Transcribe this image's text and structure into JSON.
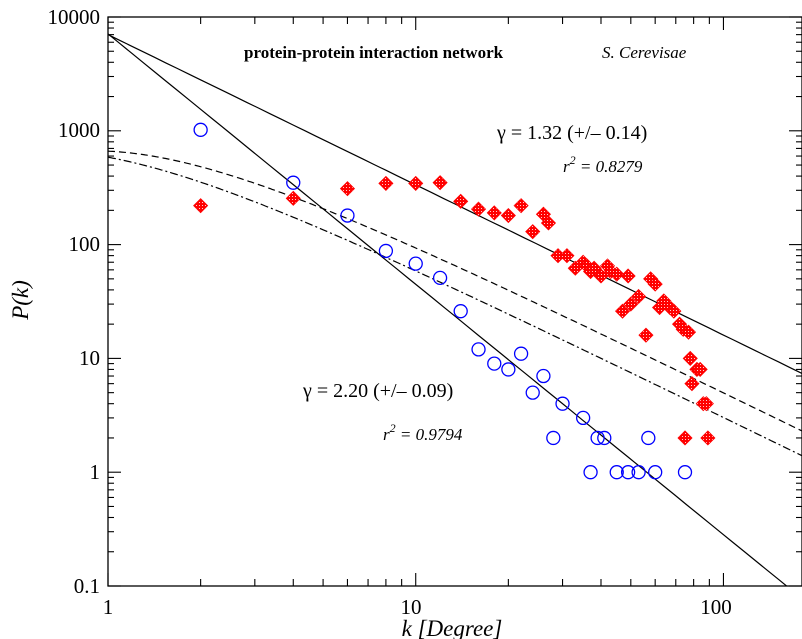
{
  "chart_data": {
    "type": "scatter",
    "title": "protein-protein interaction network",
    "subtitle": "S. Cerevisae",
    "xlabel": "k [Degree]",
    "ylabel": "P(k)",
    "xscale": "log",
    "yscale": "log",
    "xlim": [
      1,
      180
    ],
    "ylim": [
      0.1,
      10000
    ],
    "grid": false,
    "x_ticks": [
      1,
      10,
      100
    ],
    "x_tick_labels": [
      "1",
      "10",
      "100"
    ],
    "y_ticks": [
      0.1,
      1,
      10,
      100,
      1000,
      10000
    ],
    "y_tick_labels": [
      "0.1",
      "1",
      "10",
      "100",
      "1000",
      "10000"
    ],
    "series": [
      {
        "marker": "red-diamond",
        "color": "#ff0000",
        "points": [
          [
            2,
            220
          ],
          [
            4,
            255
          ],
          [
            6,
            310
          ],
          [
            8,
            345
          ],
          [
            10,
            345
          ],
          [
            12,
            350
          ],
          [
            14,
            240
          ],
          [
            16,
            205
          ],
          [
            18,
            190
          ],
          [
            20,
            180
          ],
          [
            22,
            220
          ],
          [
            24,
            130
          ],
          [
            26,
            185
          ],
          [
            27,
            155
          ],
          [
            29,
            80
          ],
          [
            31,
            80
          ],
          [
            33,
            62
          ],
          [
            35,
            70
          ],
          [
            36,
            65
          ],
          [
            37,
            58
          ],
          [
            38,
            62
          ],
          [
            40,
            53
          ],
          [
            42,
            65
          ],
          [
            43,
            58
          ],
          [
            45,
            55
          ],
          [
            47,
            26
          ],
          [
            49,
            53
          ],
          [
            50,
            30
          ],
          [
            53,
            35
          ],
          [
            56,
            16
          ],
          [
            58,
            50
          ],
          [
            60,
            45
          ],
          [
            62,
            28
          ],
          [
            64,
            32
          ],
          [
            67,
            28
          ],
          [
            69,
            26
          ],
          [
            72,
            20
          ],
          [
            74,
            18
          ],
          [
            75,
            2
          ],
          [
            77,
            17
          ],
          [
            78,
            10
          ],
          [
            79,
            6
          ],
          [
            82,
            8
          ],
          [
            84,
            8
          ],
          [
            86,
            4
          ],
          [
            88,
            4
          ],
          [
            89,
            2
          ]
        ]
      },
      {
        "marker": "blue-circle",
        "color": "#0000ff",
        "points": [
          [
            2,
            1020
          ],
          [
            4,
            350
          ],
          [
            6,
            180
          ],
          [
            8,
            88
          ],
          [
            10,
            68
          ],
          [
            12,
            51
          ],
          [
            14,
            26
          ],
          [
            16,
            12
          ],
          [
            18,
            9
          ],
          [
            20,
            8
          ],
          [
            22,
            11
          ],
          [
            24,
            5
          ],
          [
            26,
            7
          ],
          [
            28,
            2
          ],
          [
            30,
            4
          ],
          [
            35,
            3
          ],
          [
            37,
            1
          ],
          [
            39,
            2
          ],
          [
            41,
            2
          ],
          [
            45,
            1
          ],
          [
            49,
            1
          ],
          [
            53,
            1
          ],
          [
            57,
            2
          ],
          [
            60,
            1
          ],
          [
            75,
            1
          ]
        ]
      }
    ],
    "fit_lines": [
      {
        "gamma": 1.32,
        "amplitude": 7000,
        "style": "solid"
      },
      {
        "gamma": 2.2,
        "amplitude": 7100,
        "style": "solid"
      }
    ],
    "model_curves": [
      {
        "style": "dashed",
        "gamma": 1.32,
        "a": 1.2
      },
      {
        "style": "dashdot",
        "gamma": 1.32,
        "a": 0.82
      }
    ],
    "annotations": [
      {
        "gamma_text": "γ = 1.32 (+/– 0.14)",
        "r2_label": "r",
        "r2_power": "2",
        "r2_value": " = 0.8279"
      },
      {
        "gamma_text": "γ = 2.20 (+/– 0.09)",
        "r2_label": "r",
        "r2_power": "2",
        "r2_value": " = 0.9794"
      }
    ]
  }
}
